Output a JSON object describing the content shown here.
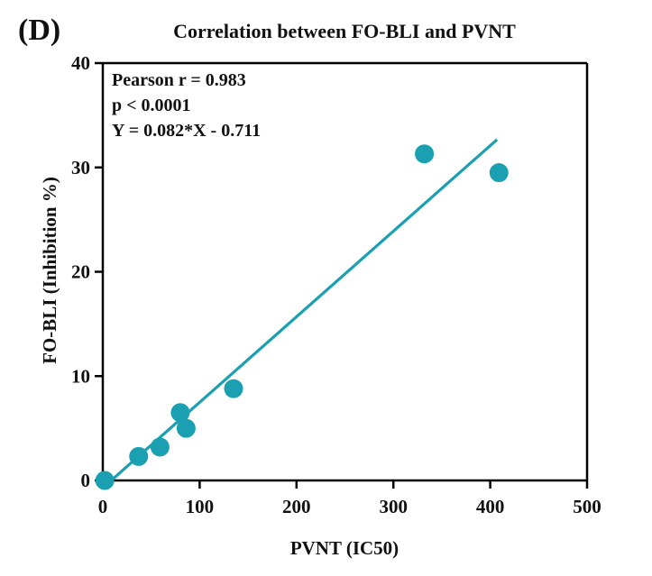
{
  "panel_label": "(D)",
  "chart_data": {
    "type": "scatter",
    "title": "Correlation between FO-BLI and PVNT",
    "xlabel": "PVNT (IC50)",
    "ylabel": "FO-BLI (Inhibition %)",
    "xlim": [
      0,
      500
    ],
    "ylim": [
      0,
      40
    ],
    "xticks": [
      0,
      100,
      200,
      300,
      400,
      500
    ],
    "yticks": [
      0,
      10,
      20,
      30,
      40
    ],
    "xtick_labels": [
      "0",
      "100",
      "200",
      "300",
      "400",
      "500"
    ],
    "ytick_labels": [
      "0",
      "10",
      "20",
      "30",
      "40"
    ],
    "points": [
      {
        "x": 2,
        "y": 0
      },
      {
        "x": 37,
        "y": 2.3
      },
      {
        "x": 59,
        "y": 3.2
      },
      {
        "x": 80,
        "y": 6.5
      },
      {
        "x": 86,
        "y": 5.0
      },
      {
        "x": 135,
        "y": 8.8
      },
      {
        "x": 332,
        "y": 31.3
      },
      {
        "x": 409,
        "y": 29.5
      }
    ],
    "fit_line": {
      "slope": 0.082,
      "intercept": -0.711,
      "x_start": 9,
      "x_end": 407
    },
    "annotations": [
      "Pearson r = 0.983",
      "p < 0.0001",
      "Y = 0.082*X - 0.711"
    ],
    "colors": {
      "marker": "#1aa0b0",
      "line": "#1aa0b0",
      "axis": "#000000"
    }
  }
}
